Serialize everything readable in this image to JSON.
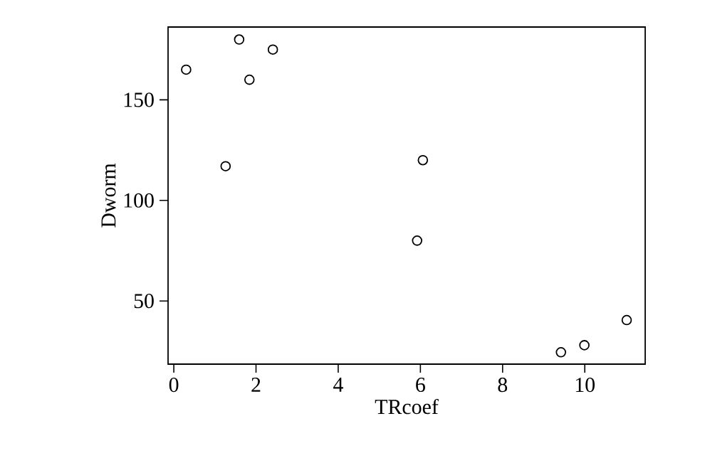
{
  "chart_data": {
    "type": "scatter",
    "xlabel": "TRcoef",
    "ylabel": "Dworm",
    "marker": "circle",
    "grid": false,
    "x": [
      0.3,
      1.59,
      1.26,
      1.84,
      2.41,
      6.06,
      5.92,
      9.42,
      9.99,
      11.02
    ],
    "values": [
      165,
      180,
      117,
      160,
      175,
      120,
      80,
      24.5,
      28,
      40.5
    ],
    "color": "#000000",
    "xlim": [
      -0.14,
      11.47
    ],
    "ylim": [
      18.6,
      186.2
    ],
    "xticks": [
      0,
      2,
      4,
      6,
      8,
      10
    ],
    "yticks": [
      50,
      100,
      150
    ]
  }
}
